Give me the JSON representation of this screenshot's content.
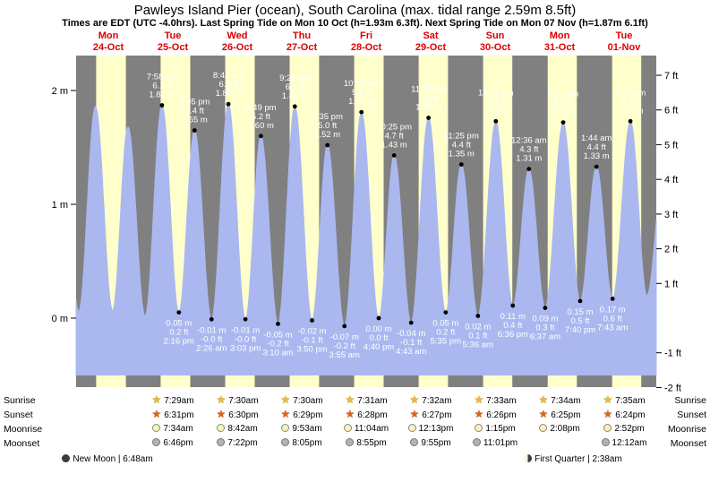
{
  "header": {
    "title": "Pawleys Island Pier (ocean), South Carolina (max. tidal range 2.59m 8.5ft)",
    "subtitle": "Times are EDT (UTC -4.0hrs). Last Spring Tide on Mon 10 Oct (h=1.93m 6.3ft). Next Spring Tide on Mon 07 Nov (h=1.87m 6.1ft)"
  },
  "colors": {
    "night_band": "#808080",
    "day_band": "#ffffcc",
    "tide_fill": "#aab8ef",
    "day_label": "#dd0000",
    "tide_label_text": "#ffffff",
    "axis_text": "#000000",
    "sunrise_icon": "#edbd2a",
    "sunset_icon": "#e2601c",
    "moonrise_icon": "#f7f2c5",
    "moonset_icon": "#b3b3b3",
    "new_moon_icon": "#3c3c3c"
  },
  "chart_data": {
    "type": "area",
    "title": "Pawleys Island Pier (ocean), South Carolina (max. tidal range 2.59m 8.5ft)",
    "x_axis": {
      "days": [
        {
          "dow": "Mon",
          "date": "24-Oct"
        },
        {
          "dow": "Tue",
          "date": "25-Oct"
        },
        {
          "dow": "Wed",
          "date": "26-Oct"
        },
        {
          "dow": "Thu",
          "date": "27-Oct"
        },
        {
          "dow": "Fri",
          "date": "28-Oct"
        },
        {
          "dow": "Sat",
          "date": "29-Oct"
        },
        {
          "dow": "Sun",
          "date": "30-Oct"
        },
        {
          "dow": "Mon",
          "date": "31-Oct"
        },
        {
          "dow": "Tue",
          "date": "01-Nov"
        }
      ]
    },
    "y_axis_left": {
      "unit": "m",
      "ticks": [
        0,
        1,
        2
      ]
    },
    "y_axis_right": {
      "unit": "ft",
      "ticks": [
        -2,
        -1,
        1,
        2,
        3,
        4,
        5,
        6,
        7
      ]
    },
    "ylim_m": [
      -0.61,
      2.31
    ],
    "fill_base_m": -0.5,
    "grid": false,
    "daylight_bands_hours": [
      [
        7.47,
        18.55
      ],
      [
        7.48,
        18.52
      ],
      [
        7.5,
        18.5
      ],
      [
        7.5,
        18.48
      ],
      [
        7.52,
        18.47
      ],
      [
        7.53,
        18.45
      ],
      [
        7.55,
        18.43
      ],
      [
        7.57,
        18.42
      ],
      [
        7.58,
        18.4
      ]
    ],
    "tide_events": [
      {
        "t": -0.21,
        "type": "high",
        "m": "1.60",
        "labeled": false
      },
      {
        "t": 0.04,
        "type": "low",
        "m": "0.06",
        "labeled": false
      },
      {
        "t": 0.3,
        "type": "high",
        "m": "1.86",
        "labeled": false
      },
      {
        "t": 0.565,
        "type": "low",
        "m": "0.07",
        "labeled": false
      },
      {
        "t": 0.805,
        "type": "high",
        "m": "1.68",
        "labeled": false
      },
      {
        "t": 1.07,
        "type": "low",
        "m": "0.02",
        "labeled": false
      },
      {
        "t": 1.332,
        "type": "high",
        "time": "7:58 am",
        "ft": "6.1",
        "m": "1.87",
        "labeled": true
      },
      {
        "t": 1.594,
        "type": "low",
        "time": "2:16 pm",
        "ft": "0.2",
        "m": "0.05",
        "labeled": true
      },
      {
        "t": 1.837,
        "type": "high",
        "time": "8:05 pm",
        "ft": "5.4",
        "m": "1.65",
        "labeled": true
      },
      {
        "t": 2.101,
        "type": "low",
        "time": "2:26 am",
        "ft": "-0.0",
        "m": "-0.01",
        "labeled": true
      },
      {
        "t": 2.362,
        "type": "high",
        "time": "8:41 am",
        "ft": "6.2",
        "m": "1.88",
        "labeled": true
      },
      {
        "t": 2.627,
        "type": "low",
        "time": "3:03 pm",
        "ft": "-0.0",
        "m": "-0.01",
        "labeled": true
      },
      {
        "t": 2.867,
        "type": "high",
        "time": "8:49 pm",
        "ft": "5.2",
        "m": "1.60",
        "labeled": true
      },
      {
        "t": 3.132,
        "type": "low",
        "time": "3:10 am",
        "ft": "-0.2",
        "m": "-0.05",
        "labeled": true
      },
      {
        "t": 3.393,
        "type": "high",
        "time": "9:26 am",
        "ft": "6.1",
        "m": "1.86",
        "labeled": true
      },
      {
        "t": 3.66,
        "type": "low",
        "time": "3:50 pm",
        "ft": "-0.1",
        "m": "-0.02",
        "labeled": true
      },
      {
        "t": 3.899,
        "type": "high",
        "time": "9:35 pm",
        "ft": "5.0",
        "m": "1.52",
        "labeled": true
      },
      {
        "t": 4.163,
        "type": "low",
        "time": "3:55 am",
        "ft": "-0.2",
        "m": "-0.07",
        "labeled": true
      },
      {
        "t": 4.427,
        "type": "high",
        "time": "10:15 am",
        "ft": "5.9",
        "m": "1.81",
        "labeled": true
      },
      {
        "t": 4.694,
        "type": "low",
        "time": "4:40 pm",
        "ft": "0.0",
        "m": "0.00",
        "labeled": true
      },
      {
        "t": 4.934,
        "type": "high",
        "time": "10:25 pm",
        "ft": "4.7",
        "m": "1.43",
        "labeled": true
      },
      {
        "t": 5.197,
        "type": "low",
        "time": "4:43 am",
        "ft": "-0.1",
        "m": "-0.04",
        "labeled": true
      },
      {
        "t": 5.467,
        "type": "high",
        "time": "11:12 am",
        "ft": "5.8",
        "m": "1.76",
        "labeled": true
      },
      {
        "t": 5.733,
        "type": "low",
        "time": "5:35 pm",
        "ft": "0.2",
        "m": "0.05",
        "labeled": true
      },
      {
        "t": 5.976,
        "type": "high",
        "time": "11:25 pm",
        "ft": "4.4",
        "m": "1.35",
        "labeled": true
      },
      {
        "t": 6.233,
        "type": "low",
        "time": "5:36 am",
        "ft": "0.1",
        "m": "0.02",
        "labeled": true
      },
      {
        "t": 6.511,
        "type": "high",
        "time": "12:16 pm",
        "ft": "5.7",
        "m": "1.73",
        "labeled": true
      },
      {
        "t": 6.775,
        "type": "low",
        "time": "6:36 pm",
        "ft": "0.4",
        "m": "0.11",
        "labeled": true
      },
      {
        "t": 7.025,
        "type": "high",
        "time": "12:36 am",
        "ft": "4.3",
        "m": "1.31",
        "labeled": true
      },
      {
        "t": 7.276,
        "type": "low",
        "time": "6:37 am",
        "ft": "0.3",
        "m": "0.09",
        "labeled": true
      },
      {
        "t": 7.556,
        "type": "high",
        "time": "1:21 pm",
        "ft": "5.6",
        "m": "1.72",
        "labeled": true
      },
      {
        "t": 7.819,
        "type": "low",
        "time": "7:40 pm",
        "ft": "0.5",
        "m": "0.15",
        "labeled": true
      },
      {
        "t": 8.072,
        "type": "high",
        "time": "1:44 am",
        "ft": "4.4",
        "m": "1.33",
        "labeled": true
      },
      {
        "t": 8.322,
        "type": "low",
        "time": "7:43 am",
        "ft": "0.6",
        "m": "0.17",
        "labeled": true
      },
      {
        "t": 8.599,
        "type": "high",
        "time": "2:22 pm",
        "ft": "5.7",
        "m": "1.73",
        "labeled": true
      },
      {
        "t": 8.855,
        "type": "low",
        "m": "0.20",
        "labeled": false
      },
      {
        "t": 9.12,
        "type": "high",
        "m": "1.35",
        "labeled": false
      }
    ]
  },
  "astro": {
    "rows": [
      {
        "id": "sunrise",
        "label": "Sunrise",
        "icon": "star",
        "times": [
          "7:29am",
          "7:30am",
          "7:30am",
          "7:31am",
          "7:32am",
          "7:33am",
          "7:34am",
          "7:35am"
        ]
      },
      {
        "id": "sunset",
        "label": "Sunset",
        "icon": "star",
        "times": [
          "6:31pm",
          "6:30pm",
          "6:29pm",
          "6:28pm",
          "6:27pm",
          "6:26pm",
          "6:25pm",
          "6:24pm"
        ]
      },
      {
        "id": "moonrise",
        "label": "Moonrise",
        "icon": "disc",
        "times": [
          "7:34am",
          "8:42am",
          "9:53am",
          "11:04am",
          "12:13pm",
          "1:15pm",
          "2:08pm",
          "2:52pm"
        ]
      },
      {
        "id": "moonset",
        "label": "Moonset",
        "icon": "disc",
        "times": [
          "6:46pm",
          "7:22pm",
          "8:05pm",
          "8:55pm",
          "9:55pm",
          "11:01pm",
          null,
          "12:12am"
        ]
      }
    ],
    "phases": [
      {
        "id": "new-moon",
        "icon": "newmoon",
        "text": "New Moon | 6:48am"
      },
      {
        "id": "first-quarter",
        "icon": "firstquarter",
        "text": "First Quarter | 2:38am"
      }
    ]
  }
}
